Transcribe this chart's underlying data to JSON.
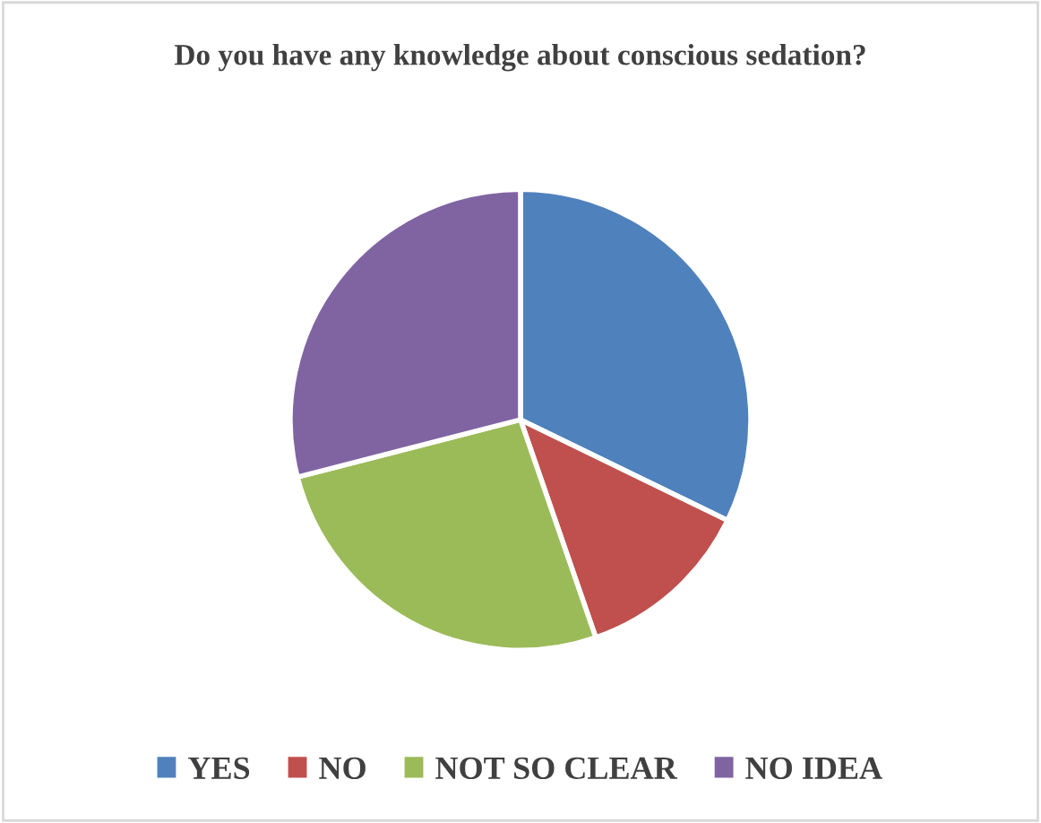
{
  "chart_data": {
    "type": "pie",
    "title": "Do you have any knowledge about conscious sedation?",
    "categories": [
      "YES",
      "NO",
      "NOT SO CLEAR",
      "NO IDEA"
    ],
    "values": [
      32.2,
      12.5,
      26.3,
      29.0
    ],
    "colors": [
      "#4f81bd",
      "#c0504d",
      "#9bbb59",
      "#8064a2"
    ],
    "legend": "bottom"
  }
}
